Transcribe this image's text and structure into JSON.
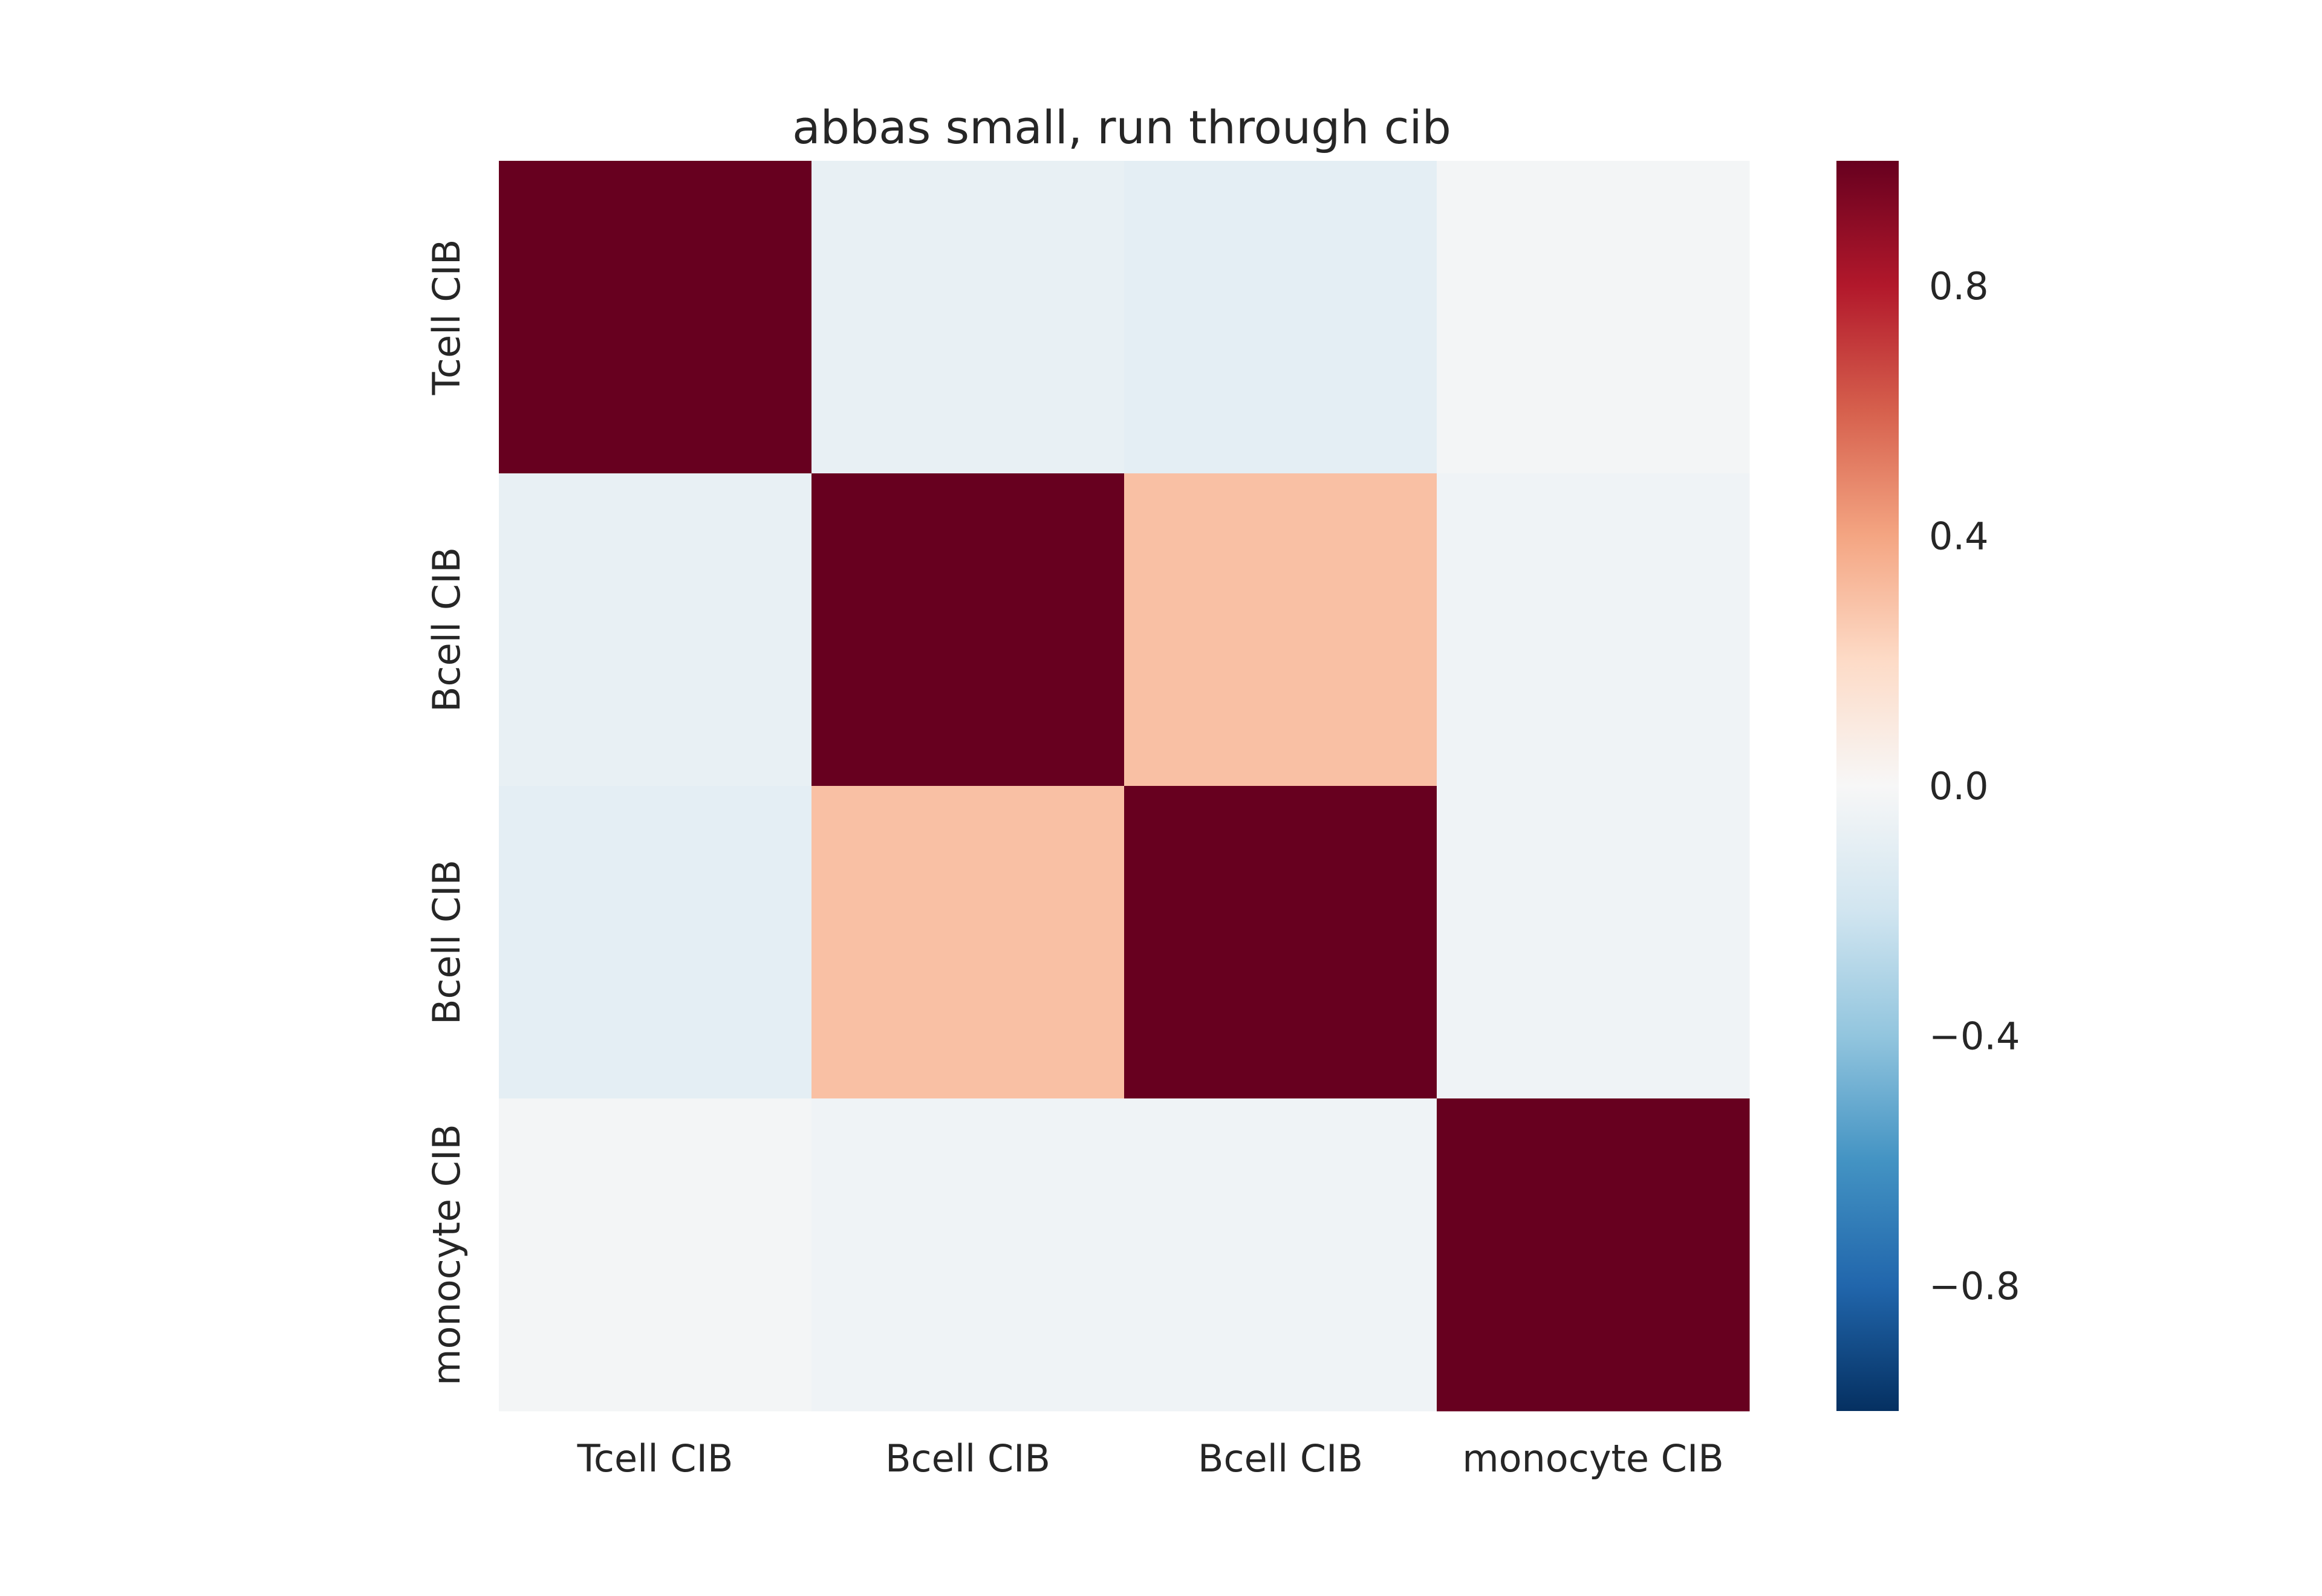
{
  "chart_data": {
    "type": "heatmap",
    "title": "abbas small, run through cib",
    "xlabel": "",
    "ylabel": "",
    "x_categories": [
      "Tcell CIB",
      "Bcell CIB",
      "Bcell CIB",
      "monocyte CIB"
    ],
    "y_categories": [
      "Tcell CIB",
      "Bcell CIB",
      "Bcell CIB",
      "monocyte CIB"
    ],
    "values": [
      [
        1.0,
        -0.08,
        -0.1,
        -0.02
      ],
      [
        -0.08,
        1.0,
        0.3,
        -0.04
      ],
      [
        -0.1,
        0.3,
        1.0,
        -0.04
      ],
      [
        -0.02,
        -0.04,
        -0.04,
        1.0
      ]
    ],
    "colorbar": {
      "min": -1.0,
      "max": 1.0,
      "ticks": [
        0.8,
        0.4,
        0.0,
        -0.4,
        -0.8
      ],
      "tick_labels": [
        "0.8",
        "0.4",
        "0.0",
        "−0.4",
        "−0.8"
      ]
    },
    "colormap": "RdBu_r",
    "grid": false
  }
}
